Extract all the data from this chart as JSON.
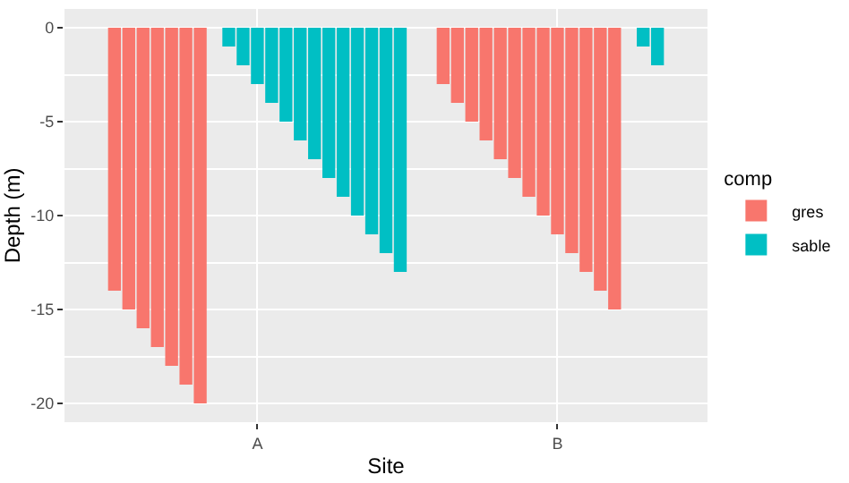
{
  "chart_data": {
    "type": "bar",
    "xlabel": "Site",
    "ylabel": "Depth (m)",
    "legend_title": "comp",
    "categories": [
      null,
      null,
      null,
      null,
      null,
      null,
      null,
      null,
      null,
      null,
      "A",
      null,
      null,
      null,
      null,
      null,
      null,
      null,
      null,
      null,
      null,
      null,
      null,
      null,
      null,
      null,
      null,
      null,
      null,
      null,
      null,
      "B",
      null,
      null,
      null,
      null,
      null,
      null,
      null
    ],
    "ylim": [
      -21,
      1
    ],
    "yticks": [
      0,
      -5,
      -10,
      -15,
      -20
    ],
    "grid": true,
    "legend": "right",
    "series": [
      {
        "name": "gres",
        "color": "#f8766d",
        "values": [
          -14,
          -15,
          -16,
          -17,
          -18,
          -19,
          -20,
          null,
          null,
          null,
          null,
          null,
          null,
          null,
          null,
          null,
          null,
          null,
          null,
          null,
          null,
          null,
          null,
          -3,
          -4,
          -5,
          -6,
          -7,
          -8,
          -9,
          -10,
          -11,
          -12,
          -13,
          -14,
          -15,
          null,
          null,
          null
        ]
      },
      {
        "name": "sable",
        "color": "#00bfc4",
        "values": [
          null,
          null,
          null,
          null,
          null,
          null,
          null,
          null,
          -1,
          -2,
          -3,
          -4,
          -5,
          -6,
          -7,
          -8,
          -9,
          -10,
          -11,
          -12,
          -13,
          null,
          null,
          null,
          null,
          null,
          null,
          null,
          null,
          null,
          null,
          null,
          null,
          null,
          null,
          null,
          null,
          -1,
          -2
        ]
      }
    ]
  }
}
